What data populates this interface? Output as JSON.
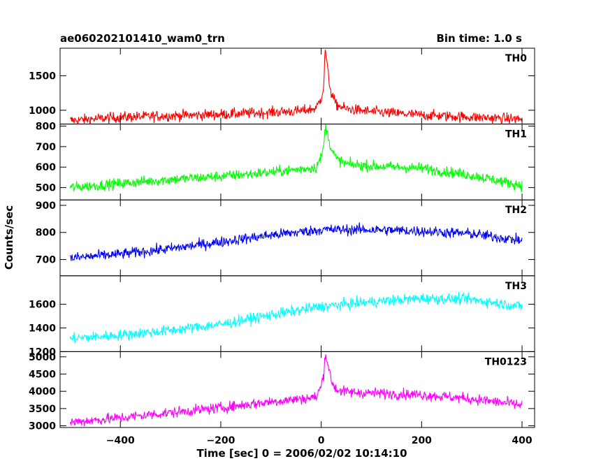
{
  "header": {
    "title": "ae060202101410_wam0_trn",
    "bin_time": "Bin time: 1.0 s"
  },
  "chart_data": {
    "type": "line",
    "xlabel": "Time [sec] 0 = 2006/02/02 10:14:10",
    "ylabel": "Counts/sec",
    "xlim": [
      -520,
      425
    ],
    "xticks": [
      -400,
      -200,
      0,
      200,
      400
    ],
    "xtick_labels": [
      "−400",
      "−200",
      "0",
      "200",
      "400"
    ],
    "bin_time_s": 1.0,
    "grid": false,
    "panels": [
      {
        "name": "TH0",
        "color": "#ff0000",
        "ylim": [
          800,
          1900
        ],
        "yticks": [
          1000,
          1500
        ],
        "ytick_labels": [
          "1000",
          "1500"
        ],
        "series": {
          "x": [
            -500,
            -400,
            -300,
            -200,
            -100,
            -40,
            -10,
            0,
            5,
            8,
            15,
            20,
            30,
            50,
            100,
            200,
            300,
            400
          ],
          "y": [
            850,
            900,
            920,
            940,
            970,
            990,
            1030,
            1180,
            1350,
            1900,
            1450,
            1250,
            1080,
            1020,
            980,
            930,
            900,
            870
          ]
        }
      },
      {
        "name": "TH1",
        "color": "#00ff00",
        "ylim": [
          440,
          810
        ],
        "yticks": [
          500,
          600,
          700,
          800
        ],
        "ytick_labels": [
          "500",
          "600",
          "700",
          "800"
        ],
        "series": {
          "x": [
            -500,
            -400,
            -300,
            -200,
            -100,
            -40,
            -10,
            0,
            5,
            8,
            15,
            20,
            30,
            50,
            100,
            200,
            300,
            400
          ],
          "y": [
            500,
            520,
            540,
            555,
            575,
            590,
            600,
            650,
            700,
            800,
            740,
            690,
            640,
            615,
            605,
            595,
            560,
            510
          ]
        }
      },
      {
        "name": "TH2",
        "color": "#0000ff",
        "ylim": [
          640,
          920
        ],
        "yticks": [
          700,
          800,
          900
        ],
        "ytick_labels": [
          "700",
          "800",
          "900"
        ],
        "series": {
          "x": [
            -500,
            -400,
            -300,
            -200,
            -100,
            0,
            100,
            200,
            300,
            400
          ],
          "y": [
            705,
            720,
            740,
            765,
            790,
            810,
            810,
            805,
            795,
            770
          ]
        }
      },
      {
        "name": "TH3",
        "color": "#00ffff",
        "ylim": [
          1200,
          1840
        ],
        "yticks": [
          1200,
          1400,
          1600
        ],
        "ytick_labels": [
          "1200",
          "1400",
          "1600"
        ],
        "series": {
          "x": [
            -500,
            -400,
            -300,
            -200,
            -100,
            0,
            100,
            200,
            300,
            400
          ],
          "y": [
            1310,
            1340,
            1380,
            1430,
            1510,
            1580,
            1620,
            1650,
            1640,
            1580
          ]
        }
      },
      {
        "name": "TH0123",
        "color": "#ff00ff",
        "ylim": [
          2950,
          5150
        ],
        "yticks": [
          3000,
          3500,
          4000,
          4500,
          5000
        ],
        "ytick_labels": [
          "3000",
          "3500",
          "4000",
          "4500",
          "5000"
        ],
        "series": {
          "x": [
            -500,
            -400,
            -300,
            -200,
            -100,
            -40,
            -10,
            0,
            5,
            8,
            15,
            20,
            30,
            50,
            100,
            200,
            300,
            400
          ],
          "y": [
            3100,
            3230,
            3380,
            3520,
            3700,
            3780,
            3830,
            4150,
            4500,
            5100,
            4700,
            4300,
            4050,
            3980,
            3950,
            3900,
            3780,
            3600
          ]
        }
      }
    ]
  }
}
